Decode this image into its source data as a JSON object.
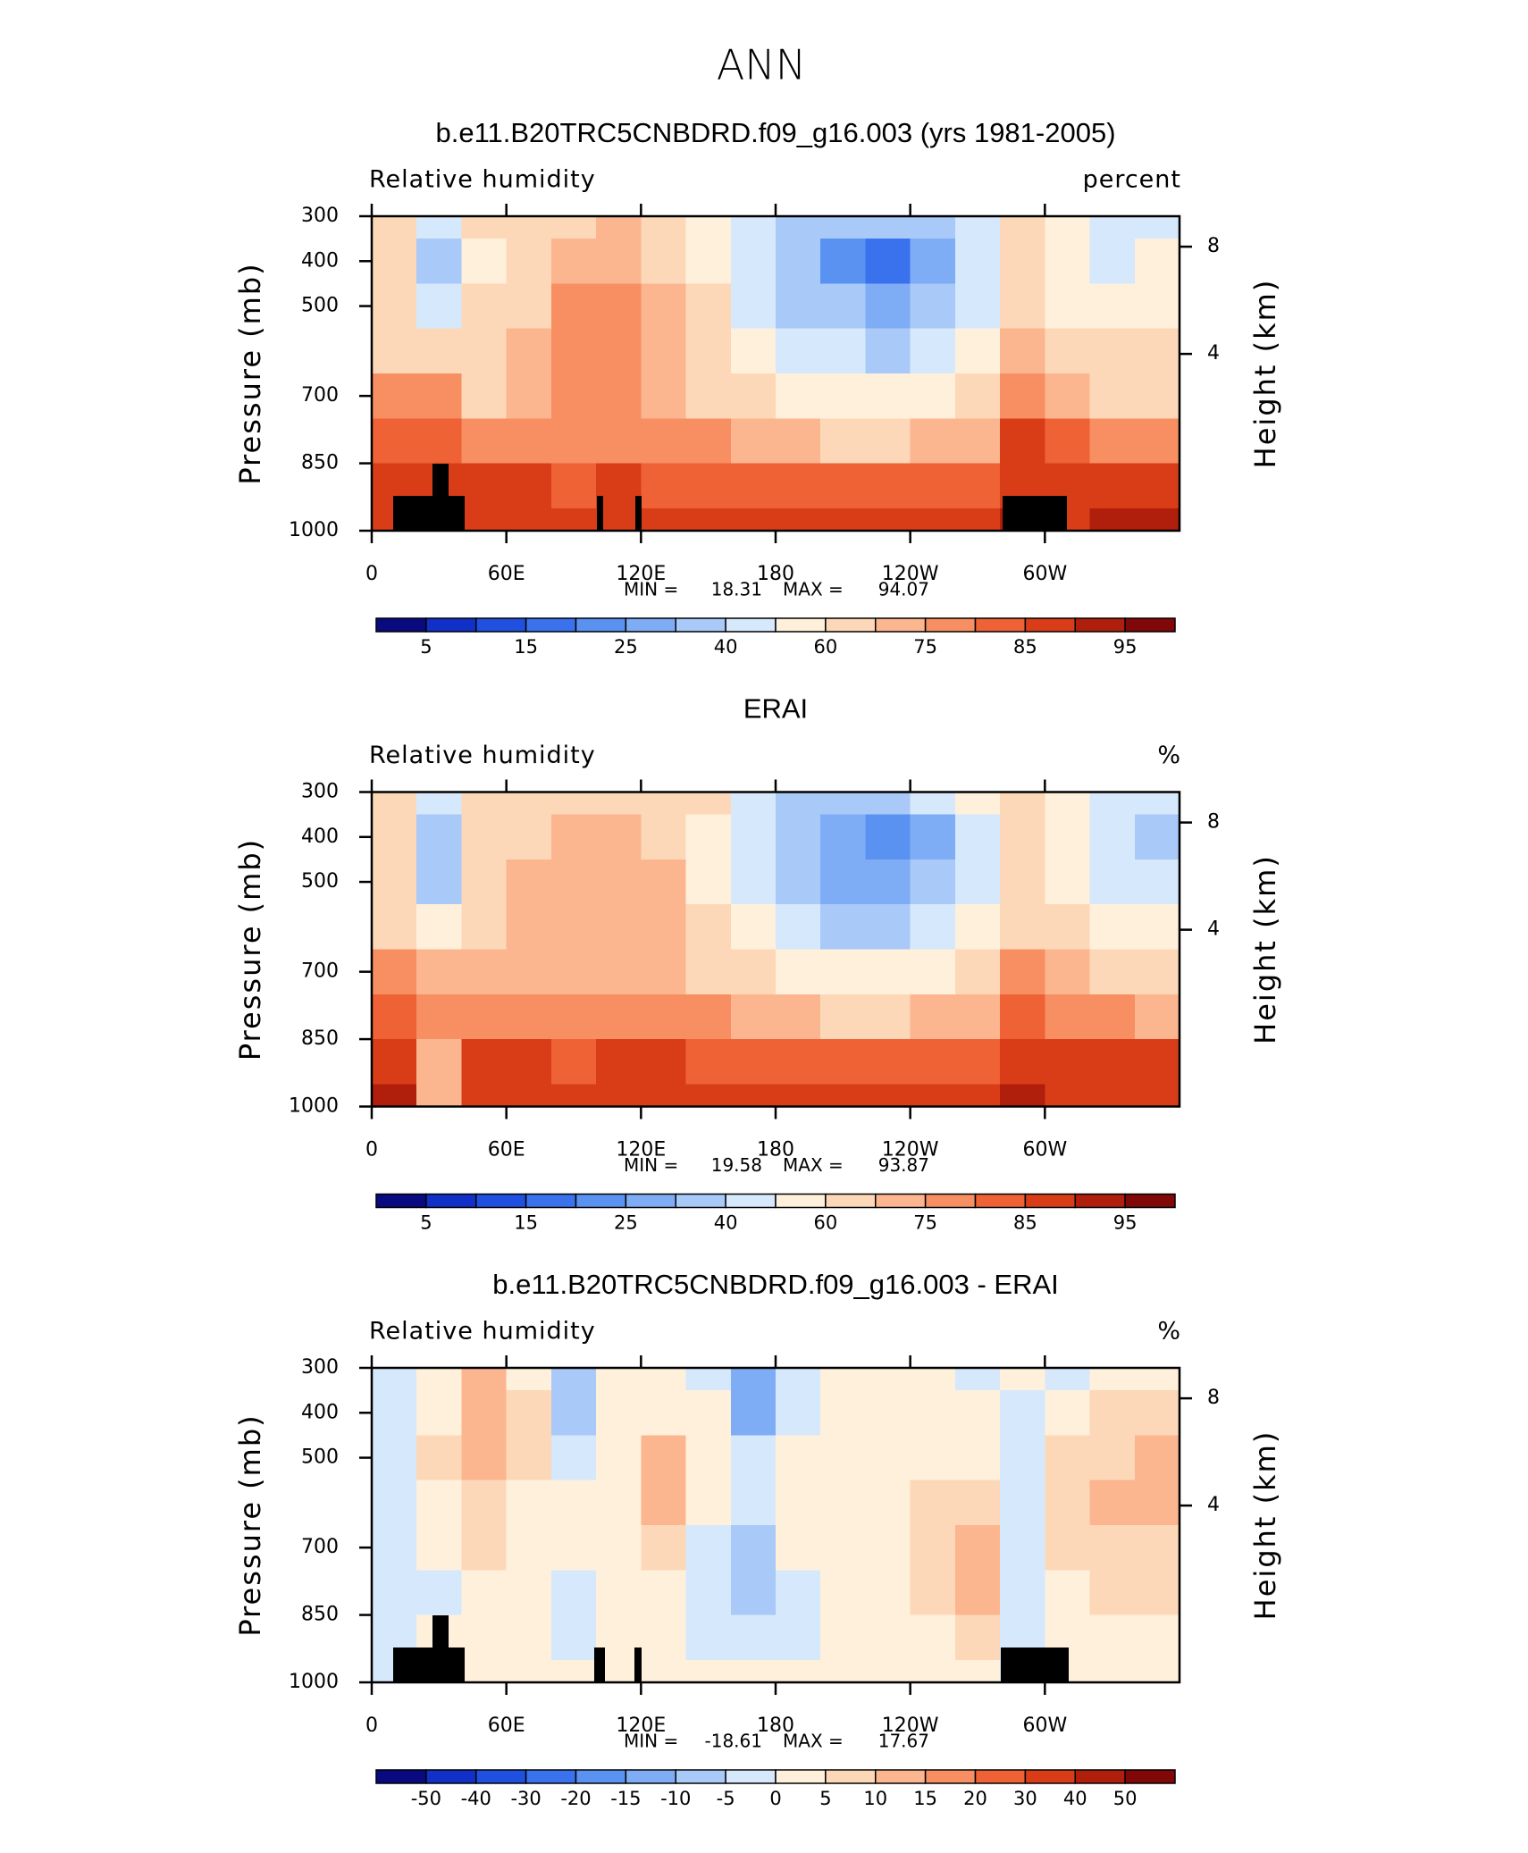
{
  "title": "ANN",
  "chart_data": [
    {
      "type": "contour",
      "title": "b.e11.B20TRC5CNBDRD.f09_g16.003 (yrs 1981-2005)",
      "subtitle_left": "Relative humidity",
      "subtitle_right": "percent",
      "ylabel": "Pressure (mb)",
      "y2label": "Height (km)",
      "xlim": [
        0,
        360
      ],
      "xticks": [
        0,
        {
          "value": 60,
          "label": "60E"
        },
        {
          "value": 120,
          "label": "120E"
        },
        180,
        {
          "value": 240,
          "label": "120W"
        },
        {
          "value": 300,
          "label": "60W"
        }
      ],
      "ylim": [
        1000,
        300
      ],
      "yticks": [
        300,
        400,
        500,
        700,
        850,
        1000
      ],
      "y2lim": [
        0,
        9.63
      ],
      "y2ticks": [
        4,
        8
      ],
      "x": [
        10,
        30,
        50,
        70,
        90,
        110,
        130,
        150,
        170,
        190,
        210,
        230,
        250,
        270,
        290,
        310,
        330,
        350
      ],
      "y": [
        300,
        400,
        500,
        600,
        700,
        800,
        900,
        1000
      ],
      "z": [
        [
          62,
          45,
          60,
          62,
          68,
          70,
          68,
          55,
          40,
          35,
          30,
          30,
          35,
          45,
          60,
          52,
          45,
          48
        ],
        [
          60,
          38,
          58,
          65,
          70,
          72,
          68,
          55,
          40,
          30,
          22,
          18,
          25,
          40,
          60,
          50,
          48,
          50
        ],
        [
          62,
          45,
          62,
          68,
          75,
          78,
          72,
          60,
          45,
          35,
          30,
          28,
          32,
          45,
          65,
          58,
          55,
          55
        ],
        [
          68,
          60,
          66,
          70,
          75,
          78,
          72,
          62,
          52,
          45,
          40,
          38,
          40,
          50,
          72,
          65,
          62,
          62
        ],
        [
          75,
          75,
          68,
          70,
          75,
          78,
          74,
          68,
          62,
          58,
          55,
          52,
          55,
          62,
          78,
          72,
          68,
          68
        ],
        [
          82,
          82,
          78,
          76,
          78,
          78,
          78,
          75,
          72,
          70,
          68,
          68,
          70,
          74,
          85,
          80,
          76,
          75
        ],
        [
          88,
          88,
          86,
          85,
          84,
          85,
          84,
          82,
          80,
          80,
          80,
          80,
          80,
          82,
          88,
          86,
          86,
          85
        ],
        [
          88,
          90,
          88,
          88,
          85,
          86,
          85,
          85,
          85,
          86,
          86,
          87,
          88,
          88,
          90,
          88,
          90,
          90
        ]
      ],
      "stats": [
        {
          "label": "MIN =",
          "value": 18.31
        },
        {
          "label": "MAX =",
          "value": 94.07
        }
      ],
      "colorbar": {
        "levels": [
          5,
          10,
          15,
          20,
          25,
          30,
          40,
          50,
          60,
          70,
          75,
          80,
          85,
          90,
          95
        ],
        "ticks": [
          5,
          15,
          25,
          40,
          60,
          75,
          85,
          95
        ],
        "colors": [
          "#0a0a80",
          "#1030c8",
          "#2050e0",
          "#3a72ee",
          "#5a92f2",
          "#7fadf5",
          "#a9c9f8",
          "#d6e8fb",
          "#fff0dc",
          "#fdd8b8",
          "#fbb690",
          "#f78f62",
          "#ee6236",
          "#d93d18",
          "#b01e0c",
          "#800808"
        ]
      }
    },
    {
      "type": "contour",
      "title": "ERAI",
      "subtitle_left": "Relative humidity",
      "subtitle_right": "%",
      "ylabel": "Pressure (mb)",
      "y2label": "Height (km)",
      "xlim": [
        0,
        360
      ],
      "xticks": [
        0,
        {
          "value": 60,
          "label": "60E"
        },
        {
          "value": 120,
          "label": "120E"
        },
        180,
        {
          "value": 240,
          "label": "120W"
        },
        {
          "value": 300,
          "label": "60W"
        }
      ],
      "ylim": [
        1000,
        300
      ],
      "yticks": [
        300,
        400,
        500,
        700,
        850,
        1000
      ],
      "y2lim": [
        0,
        9.63
      ],
      "y2ticks": [
        4,
        8
      ],
      "x": [
        10,
        30,
        50,
        70,
        90,
        110,
        130,
        150,
        170,
        190,
        210,
        230,
        250,
        270,
        290,
        310,
        330,
        350
      ],
      "y": [
        300,
        400,
        500,
        600,
        700,
        800,
        900,
        1000
      ],
      "z": [
        [
          62,
          45,
          62,
          65,
          65,
          68,
          65,
          60,
          45,
          38,
          35,
          35,
          40,
          55,
          60,
          52,
          48,
          48
        ],
        [
          62,
          32,
          62,
          68,
          72,
          72,
          68,
          55,
          42,
          32,
          25,
          22,
          28,
          45,
          62,
          50,
          42,
          38
        ],
        [
          64,
          38,
          64,
          70,
          72,
          72,
          70,
          58,
          45,
          35,
          28,
          25,
          30,
          45,
          64,
          55,
          45,
          42
        ],
        [
          68,
          55,
          68,
          72,
          72,
          72,
          70,
          62,
          52,
          45,
          38,
          35,
          40,
          50,
          68,
          60,
          55,
          52
        ],
        [
          75,
          70,
          70,
          72,
          72,
          72,
          72,
          68,
          62,
          58,
          52,
          50,
          52,
          60,
          75,
          70,
          65,
          62
        ],
        [
          82,
          78,
          76,
          76,
          78,
          78,
          78,
          76,
          72,
          70,
          68,
          68,
          70,
          74,
          82,
          78,
          75,
          74
        ],
        [
          88,
          70,
          86,
          85,
          84,
          86,
          86,
          84,
          82,
          80,
          80,
          80,
          82,
          84,
          88,
          86,
          86,
          86
        ],
        [
          90,
          72,
          88,
          88,
          88,
          88,
          88,
          88,
          88,
          88,
          88,
          88,
          88,
          88,
          90,
          88,
          88,
          88
        ]
      ],
      "stats": [
        {
          "label": "MIN =",
          "value": 19.58
        },
        {
          "label": "MAX =",
          "value": 93.87
        }
      ],
      "colorbar": {
        "levels": [
          5,
          10,
          15,
          20,
          25,
          30,
          40,
          50,
          60,
          70,
          75,
          80,
          85,
          90,
          95
        ],
        "ticks": [
          5,
          15,
          25,
          40,
          60,
          75,
          85,
          95
        ],
        "colors": [
          "#0a0a80",
          "#1030c8",
          "#2050e0",
          "#3a72ee",
          "#5a92f2",
          "#7fadf5",
          "#a9c9f8",
          "#d6e8fb",
          "#fff0dc",
          "#fdd8b8",
          "#fbb690",
          "#f78f62",
          "#ee6236",
          "#d93d18",
          "#b01e0c",
          "#800808"
        ]
      }
    },
    {
      "type": "contour",
      "title": "b.e11.B20TRC5CNBDRD.f09_g16.003 - ERAI",
      "subtitle_left": "Relative humidity",
      "subtitle_right": "%",
      "ylabel": "Pressure (mb)",
      "y2label": "Height (km)",
      "xlim": [
        0,
        360
      ],
      "xticks": [
        0,
        {
          "value": 60,
          "label": "60E"
        },
        {
          "value": 120,
          "label": "120E"
        },
        180,
        {
          "value": 240,
          "label": "120W"
        },
        {
          "value": 300,
          "label": "60W"
        }
      ],
      "ylim": [
        1000,
        300
      ],
      "yticks": [
        300,
        400,
        500,
        700,
        850,
        1000
      ],
      "y2lim": [
        0,
        9.63
      ],
      "y2ticks": [
        4,
        8
      ],
      "x": [
        10,
        30,
        50,
        70,
        90,
        110,
        130,
        150,
        170,
        190,
        210,
        230,
        250,
        270,
        290,
        310,
        330,
        350
      ],
      "y": [
        300,
        400,
        500,
        600,
        700,
        800,
        900,
        1000
      ],
      "z": [
        [
          -3,
          3,
          10,
          4,
          -10,
          2,
          2,
          -4,
          -12,
          -3,
          2,
          2,
          2,
          -2,
          2,
          -2,
          2,
          2
        ],
        [
          -2,
          4,
          12,
          5,
          -8,
          3,
          4,
          2,
          -14,
          -2,
          2,
          2,
          4,
          2,
          -3,
          2,
          5,
          6
        ],
        [
          -2,
          5,
          10,
          6,
          -2,
          3,
          12,
          1,
          -3,
          3,
          3,
          3,
          4,
          3,
          -3,
          5,
          8,
          10
        ],
        [
          -2,
          4,
          8,
          4,
          2,
          2,
          10,
          2,
          -4,
          3,
          3,
          3,
          5,
          6,
          -2,
          6,
          10,
          14
        ],
        [
          -3,
          3,
          6,
          3,
          2,
          2,
          6,
          -2,
          -8,
          2,
          2,
          3,
          8,
          12,
          -2,
          5,
          6,
          8
        ],
        [
          -3,
          -2,
          4,
          2,
          -2,
          2,
          3,
          -2,
          -6,
          -2,
          2,
          3,
          6,
          12,
          -3,
          4,
          5,
          6
        ],
        [
          -3,
          1,
          3,
          2,
          -2,
          2,
          2,
          -2,
          -4,
          -2,
          1,
          2,
          3,
          6,
          -2,
          2,
          4,
          3
        ],
        [
          -2,
          3,
          2,
          2,
          2,
          3,
          2,
          2,
          2,
          2,
          1,
          1,
          1,
          2,
          -2,
          1,
          2,
          2
        ]
      ],
      "stats": [
        {
          "label": "MIN =",
          "value": -18.61
        },
        {
          "label": "MAX =",
          "value": 17.67
        }
      ],
      "colorbar": {
        "levels": [
          -50,
          -40,
          -30,
          -20,
          -15,
          -10,
          -5,
          0,
          5,
          10,
          15,
          20,
          30,
          40,
          50
        ],
        "ticks": [
          -50,
          -40,
          -30,
          -20,
          -15,
          -10,
          -5,
          0,
          5,
          10,
          15,
          20,
          30,
          40,
          50
        ],
        "colors": [
          "#0a0a80",
          "#1030c8",
          "#2050e0",
          "#3a72ee",
          "#5a92f2",
          "#7fadf5",
          "#a9c9f8",
          "#d6e8fb",
          "#fff0dc",
          "#fdd8b8",
          "#fbb690",
          "#f78f62",
          "#ee6236",
          "#d93d18",
          "#b01e0c",
          "#800808"
        ]
      }
    }
  ]
}
